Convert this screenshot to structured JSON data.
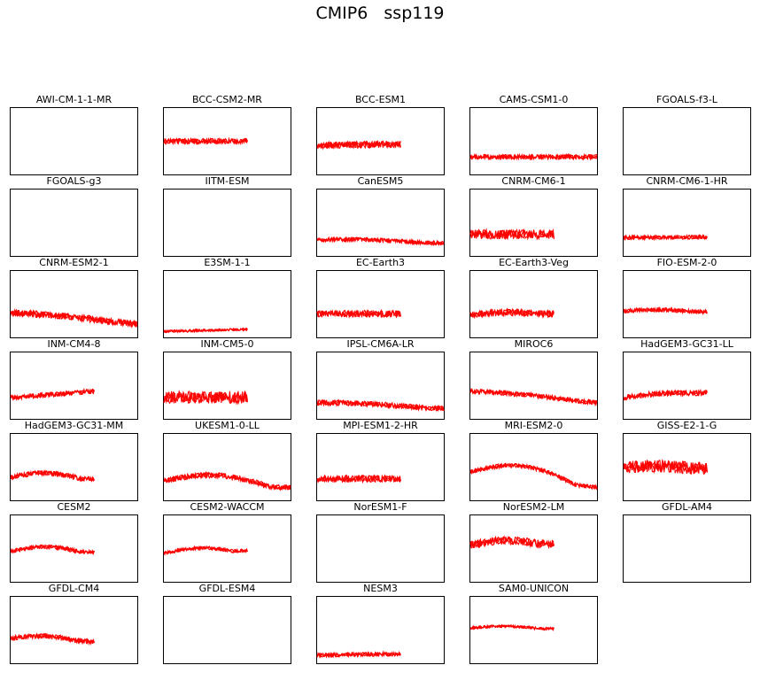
{
  "figure": {
    "title": "CMIP6   ssp119"
  },
  "chart_data": {
    "type": "line",
    "xticks": "none",
    "yticks": "none",
    "line_color": "#ff0000",
    "panels": [
      {
        "name": "AWI-CM-1-1-MR",
        "series": []
      },
      {
        "name": "BCC-CSM2-MR",
        "series": [
          {
            "x": [
              0,
              0.66
            ],
            "level": 0.5,
            "end": 0.5,
            "noise": 0.04
          }
        ]
      },
      {
        "name": "BCC-ESM1",
        "series": [
          {
            "x": [
              0,
              0.66
            ],
            "level": 0.44,
            "end": 0.46,
            "noise": 0.05
          }
        ]
      },
      {
        "name": "CAMS-CSM1-0",
        "series": [
          {
            "x": [
              0,
              1.0
            ],
            "level": 0.27,
            "end": 0.27,
            "noise": 0.035
          }
        ]
      },
      {
        "name": "FGOALS-f3-L",
        "series": []
      },
      {
        "name": "FGOALS-g3",
        "series": []
      },
      {
        "name": "IITM-ESM",
        "series": []
      },
      {
        "name": "CanESM5",
        "series": [
          {
            "x": [
              0,
              1.0
            ],
            "level": 0.25,
            "end": 0.2,
            "noise": 0.03,
            "bump": 0.02
          }
        ]
      },
      {
        "name": "CNRM-CM6-1",
        "series": [
          {
            "x": [
              0,
              0.66
            ],
            "level": 0.33,
            "end": 0.33,
            "noise": 0.07
          }
        ]
      },
      {
        "name": "CNRM-CM6-1-HR",
        "series": [
          {
            "x": [
              0,
              0.66
            ],
            "level": 0.28,
            "end": 0.29,
            "noise": 0.03
          }
        ]
      },
      {
        "name": "CNRM-ESM2-1",
        "series": [
          {
            "x": [
              0,
              1.0
            ],
            "level": 0.37,
            "end": 0.21,
            "noise": 0.05,
            "bump": 0.02
          }
        ]
      },
      {
        "name": "E3SM-1-1",
        "series": [
          {
            "x": [
              0,
              0.66
            ],
            "level": 0.1,
            "end": 0.13,
            "noise": 0.02
          }
        ]
      },
      {
        "name": "EC-Earth3",
        "series": [
          {
            "x": [
              0,
              0.66
            ],
            "level": 0.36,
            "end": 0.36,
            "noise": 0.05
          }
        ]
      },
      {
        "name": "EC-Earth3-Veg",
        "series": [
          {
            "x": [
              0,
              0.66
            ],
            "level": 0.34,
            "end": 0.36,
            "noise": 0.05,
            "bump": 0.03
          }
        ]
      },
      {
        "name": "FIO-ESM-2-0",
        "series": [
          {
            "x": [
              0,
              0.66
            ],
            "level": 0.4,
            "end": 0.39,
            "noise": 0.03,
            "bump": 0.02
          }
        ]
      },
      {
        "name": "INM-CM4-8",
        "series": [
          {
            "x": [
              0,
              0.66
            ],
            "level": 0.32,
            "end": 0.42,
            "noise": 0.035
          }
        ]
      },
      {
        "name": "INM-CM5-0",
        "series": [
          {
            "x": [
              0,
              0.66
            ],
            "level": 0.33,
            "end": 0.33,
            "noise": 0.09
          }
        ]
      },
      {
        "name": "IPSL-CM6A-LR",
        "series": [
          {
            "x": [
              0,
              1.0
            ],
            "level": 0.25,
            "end": 0.16,
            "noise": 0.04,
            "bump": 0.02
          }
        ]
      },
      {
        "name": "MIROC6",
        "series": [
          {
            "x": [
              0,
              1.0
            ],
            "level": 0.42,
            "end": 0.25,
            "noise": 0.035,
            "bump": 0.02
          }
        ]
      },
      {
        "name": "HadGEM3-GC31-LL",
        "series": [
          {
            "x": [
              0,
              0.66
            ],
            "level": 0.32,
            "end": 0.4,
            "noise": 0.04,
            "bump": 0.03
          }
        ]
      },
      {
        "name": "HadGEM3-GC31-MM",
        "series": [
          {
            "x": [
              0,
              0.66
            ],
            "level": 0.35,
            "end": 0.33,
            "noise": 0.035,
            "bump": 0.07
          }
        ]
      },
      {
        "name": "UKESM1-0-LL",
        "series": [
          {
            "x": [
              0,
              1.0
            ],
            "level": 0.3,
            "end": 0.2,
            "noise": 0.04,
            "bump": 0.12
          }
        ]
      },
      {
        "name": "MPI-ESM1-2-HR",
        "series": [
          {
            "x": [
              0,
              0.66
            ],
            "level": 0.33,
            "end": 0.33,
            "noise": 0.05
          }
        ]
      },
      {
        "name": "MRI-ESM2-0",
        "series": [
          {
            "x": [
              0,
              1.0
            ],
            "level": 0.43,
            "end": 0.2,
            "noise": 0.03,
            "bump": 0.18
          }
        ]
      },
      {
        "name": "GISS-E2-1-G",
        "series": [
          {
            "x": [
              0,
              0.66
            ],
            "level": 0.5,
            "end": 0.48,
            "noise": 0.09,
            "bump": 0.02
          }
        ]
      },
      {
        "name": "CESM2",
        "series": [
          {
            "x": [
              0,
              0.66
            ],
            "level": 0.46,
            "end": 0.45,
            "noise": 0.03,
            "bump": 0.07
          }
        ]
      },
      {
        "name": "CESM2-WACCM",
        "series": [
          {
            "x": [
              0,
              0.66
            ],
            "level": 0.43,
            "end": 0.47,
            "noise": 0.025,
            "bump": 0.06
          }
        ]
      },
      {
        "name": "NorESM1-F",
        "series": []
      },
      {
        "name": "NorESM2-LM",
        "series": [
          {
            "x": [
              0,
              0.66
            ],
            "level": 0.55,
            "end": 0.57,
            "noise": 0.06,
            "bump": 0.06
          }
        ]
      },
      {
        "name": "GFDL-AM4",
        "series": []
      },
      {
        "name": "GFDL-CM4",
        "series": [
          {
            "x": [
              0,
              0.66
            ],
            "level": 0.38,
            "end": 0.33,
            "noise": 0.035,
            "bump": 0.05
          }
        ]
      },
      {
        "name": "GFDL-ESM4",
        "series": []
      },
      {
        "name": "NESM3",
        "series": [
          {
            "x": [
              0,
              0.66
            ],
            "level": 0.13,
            "end": 0.15,
            "noise": 0.03
          }
        ]
      },
      {
        "name": "SAM0-UNICON",
        "series": [
          {
            "x": [
              0,
              0.66
            ],
            "level": 0.53,
            "end": 0.52,
            "noise": 0.02,
            "bump": 0.03
          }
        ]
      }
    ]
  }
}
